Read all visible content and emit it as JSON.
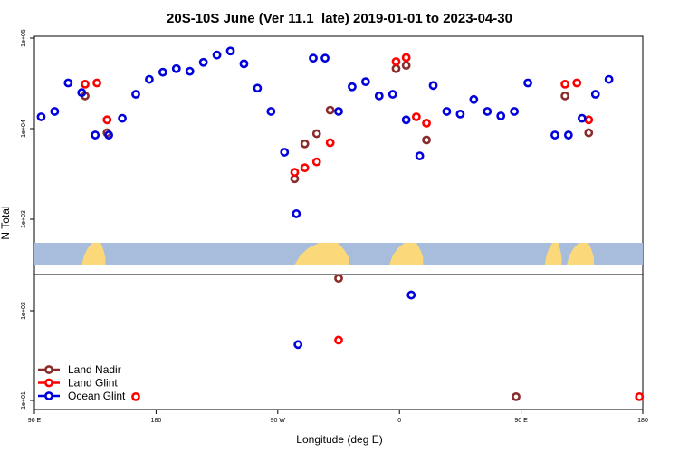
{
  "chart_data": {
    "type": "scatter",
    "title": "20S-10S June (Ver 11.1_late)   2019-01-01 to 2023-04-30",
    "xlabel": "Longitude (deg E)",
    "ylabel": "N Total",
    "xlim": [
      90,
      450
    ],
    "x_ticks": [
      {
        "value": 90,
        "label": "90 E"
      },
      {
        "value": 162,
        "label": "180"
      },
      {
        "value": 234,
        "label": "90 W"
      },
      {
        "value": 306,
        "label": "0"
      },
      {
        "value": 378,
        "label": "90 E"
      },
      {
        "value": 450,
        "label": "180"
      }
    ],
    "y_ticks": [
      {
        "value": 10,
        "label": "1e+01"
      },
      {
        "value": 100,
        "label": "1e+02"
      },
      {
        "value": 1000,
        "label": "1e+03"
      },
      {
        "value": 10000,
        "label": "1e+04"
      },
      {
        "value": 100000,
        "label": "1e+05"
      }
    ],
    "ylim_log": [
      8,
      110000
    ],
    "colors": {
      "land_nadir": "#8b2c2c",
      "land_glint": "#ff0000",
      "ocean_glint": "#0000dd",
      "ocean_band": "#a7bddb",
      "land_band": "#fbd97a"
    },
    "legend": [
      {
        "key": "land_nadir",
        "label": "Land Nadir"
      },
      {
        "key": "land_glint",
        "label": "Land Glint"
      },
      {
        "key": "ocean_glint",
        "label": "Ocean Glint"
      }
    ],
    "series": [
      {
        "name": "Land Nadir",
        "key": "land_nadir",
        "points": [
          [
            120,
            23000
          ],
          [
            133,
            9000
          ],
          [
            244,
            2800
          ],
          [
            250,
            6800
          ],
          [
            257,
            8800
          ],
          [
            265,
            16000
          ],
          [
            270,
            230
          ],
          [
            304,
            46000
          ],
          [
            310,
            50000
          ],
          [
            322,
            7500
          ],
          [
            375,
            11
          ],
          [
            404,
            23000
          ],
          [
            418,
            9000
          ]
        ]
      },
      {
        "name": "Land Glint",
        "key": "land_glint",
        "points": [
          [
            120,
            31000
          ],
          [
            127,
            32000
          ],
          [
            133,
            12500
          ],
          [
            150,
            11
          ],
          [
            244,
            3300
          ],
          [
            250,
            3700
          ],
          [
            257,
            4300
          ],
          [
            265,
            7000
          ],
          [
            270,
            47
          ],
          [
            304,
            55000
          ],
          [
            310,
            61000
          ],
          [
            316,
            13500
          ],
          [
            322,
            11500
          ],
          [
            404,
            31000
          ],
          [
            411,
            32000
          ],
          [
            418,
            12500
          ],
          [
            448,
            11
          ]
        ]
      },
      {
        "name": "Ocean Glint",
        "key": "ocean_glint",
        "points": [
          [
            94,
            13500
          ],
          [
            102,
            15500
          ],
          [
            110,
            32000
          ],
          [
            118,
            25000
          ],
          [
            126,
            8500
          ],
          [
            134,
            8500
          ],
          [
            142,
            13000
          ],
          [
            150,
            24000
          ],
          [
            158,
            35000
          ],
          [
            166,
            42000
          ],
          [
            174,
            46000
          ],
          [
            182,
            43000
          ],
          [
            190,
            54000
          ],
          [
            198,
            65000
          ],
          [
            206,
            72000
          ],
          [
            214,
            52000
          ],
          [
            222,
            28000
          ],
          [
            230,
            15500
          ],
          [
            238,
            5500
          ],
          [
            245,
            1150
          ],
          [
            246,
            42
          ],
          [
            255,
            60000
          ],
          [
            262,
            60000
          ],
          [
            270,
            15500
          ],
          [
            278,
            29000
          ],
          [
            286,
            33000
          ],
          [
            294,
            23000
          ],
          [
            302,
            24000
          ],
          [
            310,
            12500
          ],
          [
            313,
            150
          ],
          [
            318,
            5000
          ],
          [
            326,
            30000
          ],
          [
            334,
            15500
          ],
          [
            342,
            14500
          ],
          [
            350,
            21000
          ],
          [
            358,
            15500
          ],
          [
            366,
            13800
          ],
          [
            374,
            15500
          ],
          [
            382,
            32000
          ],
          [
            398,
            8500
          ],
          [
            406,
            8500
          ],
          [
            414,
            13000
          ],
          [
            422,
            24000
          ],
          [
            430,
            35000
          ]
        ]
      }
    ]
  }
}
